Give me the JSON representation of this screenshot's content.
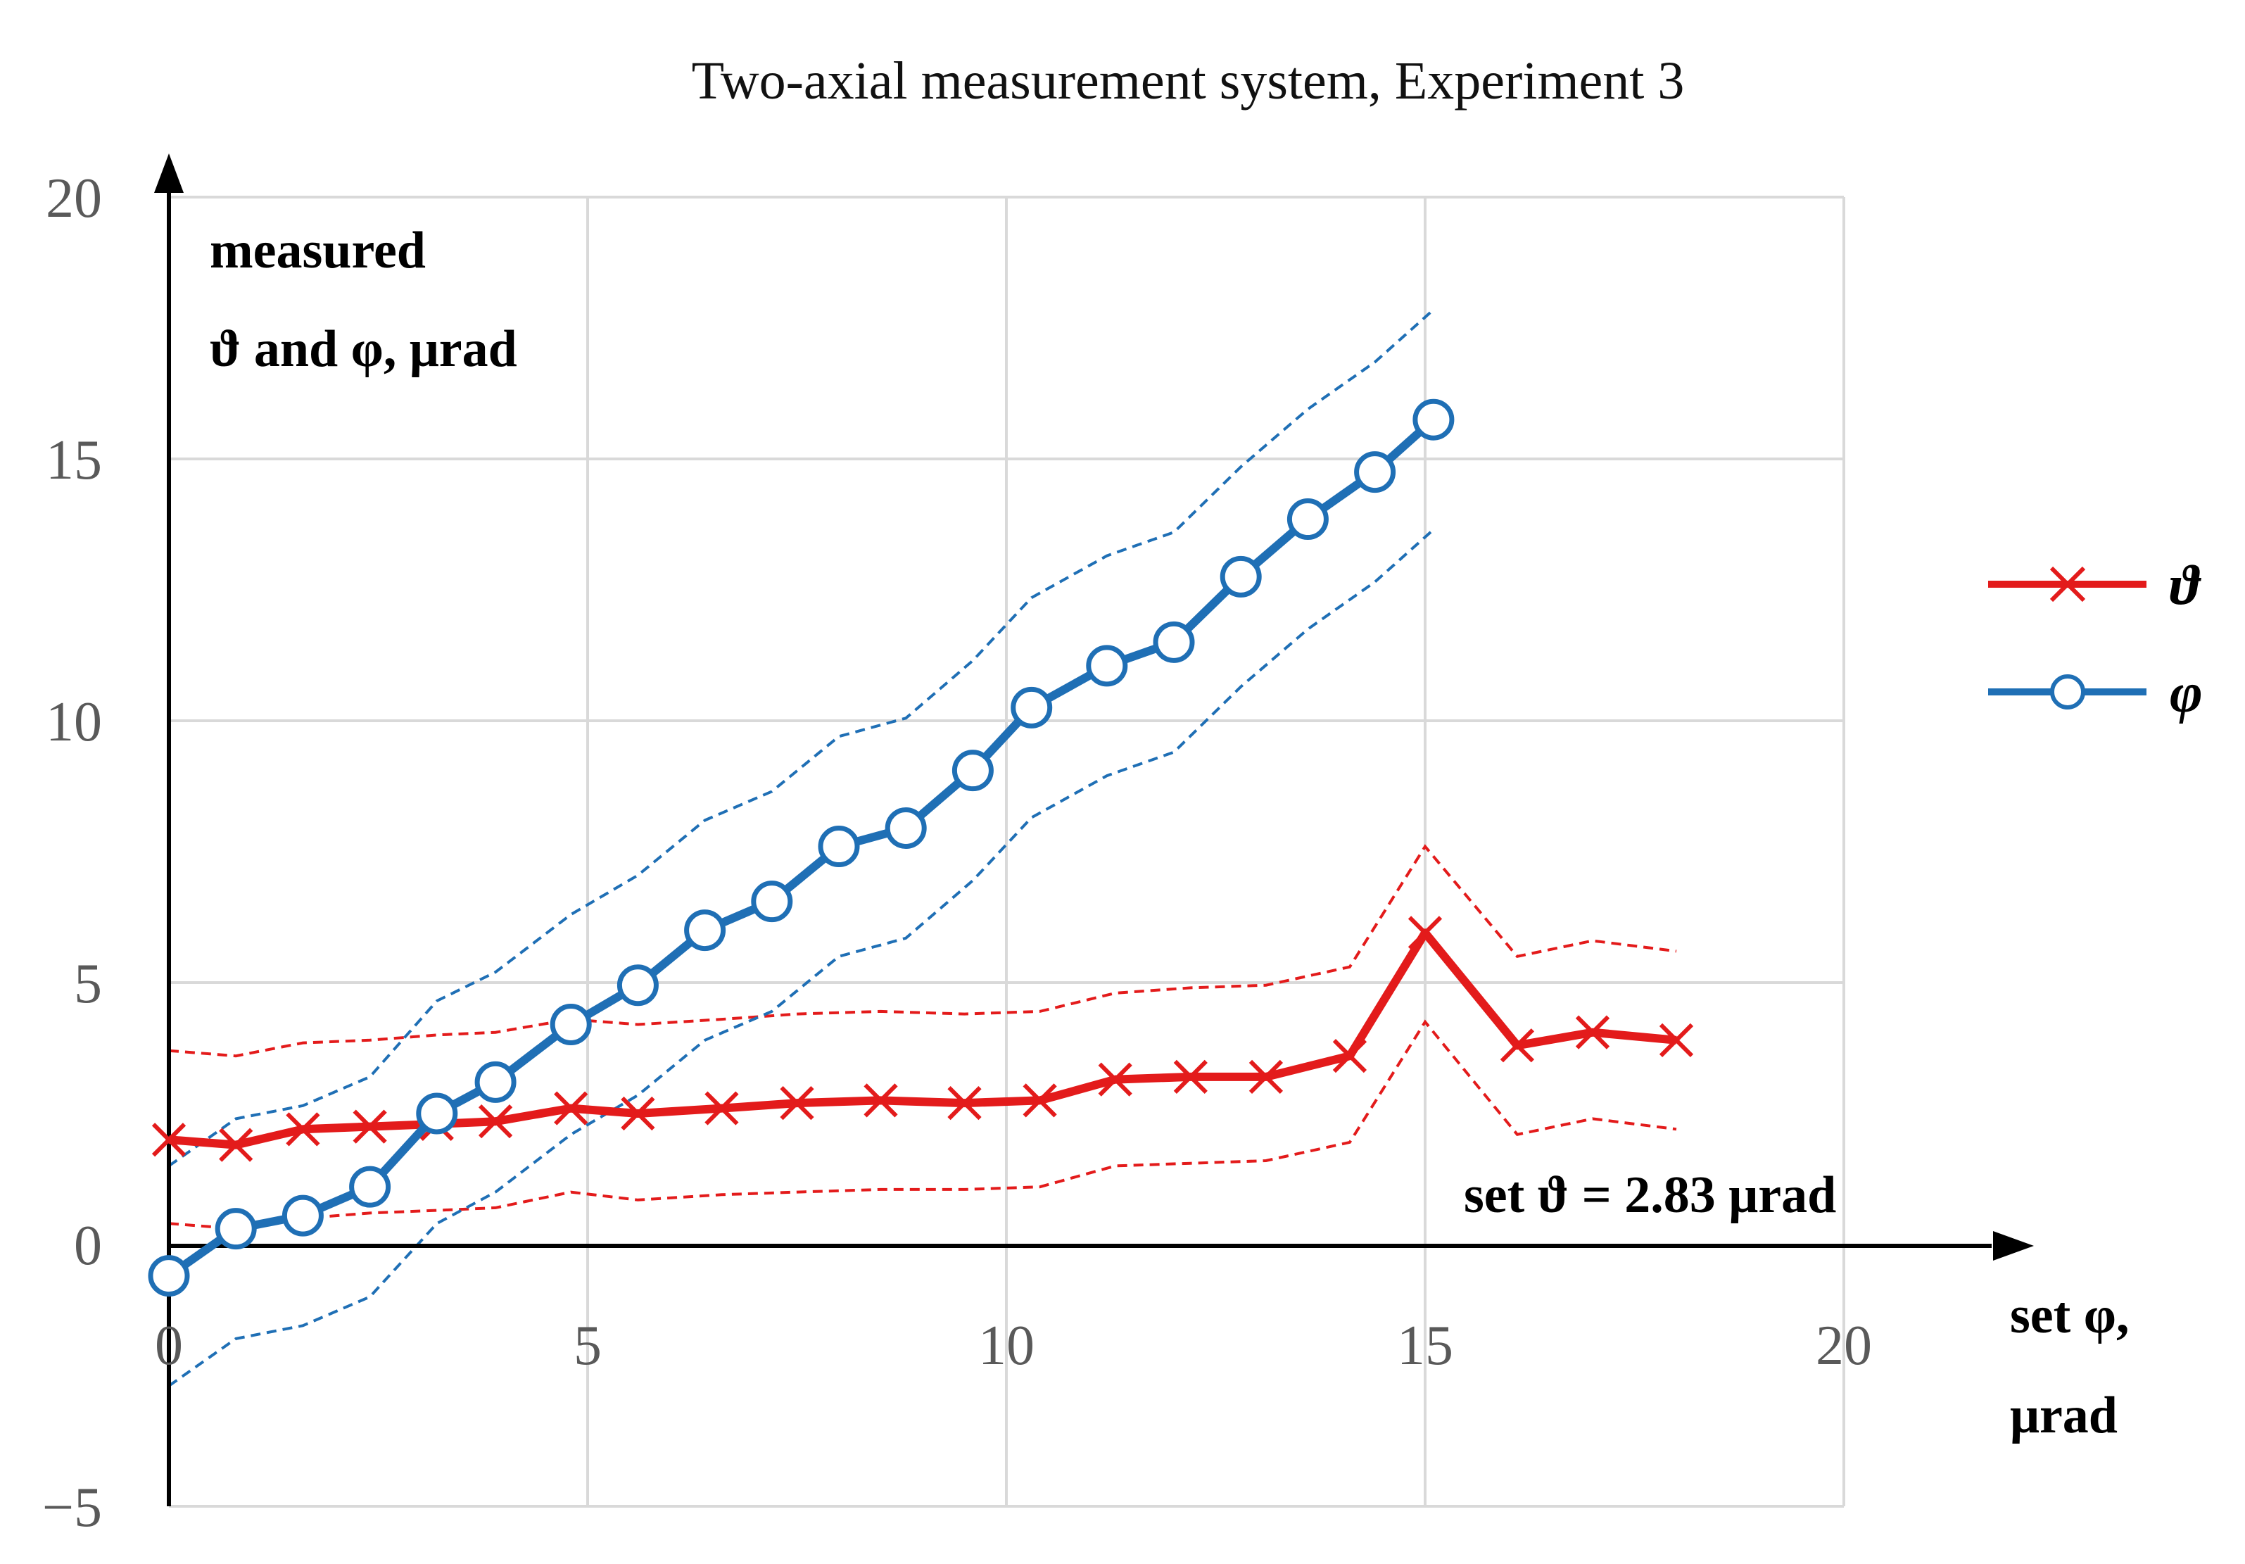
{
  "chart_data": {
    "type": "line",
    "title": "Two-axial measurement system, Experiment 3",
    "ylabel_lines": [
      "measured",
      "ϑ and φ, μrad"
    ],
    "xlabel_lines": [
      "set φ,",
      "μrad"
    ],
    "annotation": "set ϑ = 2.83 μrad",
    "xlim": [
      0,
      20
    ],
    "ylim": [
      -5,
      20
    ],
    "x_ticks": [
      0,
      5,
      10,
      15,
      20
    ],
    "y_ticks": [
      -5,
      0,
      5,
      10,
      15,
      20
    ],
    "x_tick_labels": [
      "0",
      "5",
      "10",
      "15",
      "20"
    ],
    "y_tick_labels": [
      "−5",
      "0",
      "5",
      "10",
      "15",
      "20"
    ],
    "grid": true,
    "legend_position": "right",
    "colors": {
      "theta": "#E31B1B",
      "phi": "#1F6FB5"
    },
    "series": [
      {
        "name": "ϑ",
        "marker": "x",
        "x": [
          0,
          0.8,
          1.6,
          2.4,
          3.2,
          3.9,
          4.8,
          5.6,
          6.6,
          7.5,
          8.5,
          9.5,
          10.4,
          11.3,
          12.2,
          13.1,
          14.1,
          15.0,
          16.1,
          17.0,
          18.0
        ],
        "y": [
          2.0,
          1.9,
          2.2,
          2.25,
          2.3,
          2.35,
          2.6,
          2.5,
          2.6,
          2.7,
          2.75,
          2.7,
          2.75,
          3.15,
          3.2,
          3.2,
          3.6,
          5.95,
          3.8,
          4.05,
          3.9
        ],
        "upper": [
          3.7,
          3.6,
          3.85,
          3.9,
          4.0,
          4.05,
          4.3,
          4.2,
          4.3,
          4.4,
          4.45,
          4.4,
          4.45,
          4.8,
          4.9,
          4.95,
          5.3,
          7.6,
          5.5,
          5.8,
          5.6
        ],
        "lower": [
          0.4,
          0.3,
          0.5,
          0.6,
          0.65,
          0.7,
          1.0,
          0.85,
          0.95,
          1.0,
          1.05,
          1.05,
          1.1,
          1.5,
          1.55,
          1.6,
          1.95,
          4.25,
          2.1,
          2.4,
          2.2
        ]
      },
      {
        "name": "φ",
        "marker": "o",
        "x": [
          0,
          0.8,
          1.6,
          2.4,
          3.2,
          3.9,
          4.8,
          5.6,
          6.4,
          7.2,
          8.0,
          8.8,
          9.6,
          10.3,
          11.2,
          12.0,
          12.8,
          13.6,
          14.4,
          15.1
        ],
        "y": [
          -0.6,
          0.3,
          0.55,
          1.1,
          2.5,
          3.1,
          4.2,
          4.95,
          6.0,
          6.55,
          7.6,
          7.95,
          9.05,
          10.25,
          11.05,
          11.5,
          12.75,
          13.85,
          14.75,
          15.75
        ],
        "upper": [
          1.5,
          2.4,
          2.65,
          3.2,
          4.65,
          5.2,
          6.3,
          7.05,
          8.1,
          8.65,
          9.7,
          10.05,
          11.15,
          12.35,
          13.15,
          13.6,
          14.85,
          15.95,
          16.85,
          17.85
        ],
        "lower": [
          -2.7,
          -1.8,
          -1.55,
          -1.0,
          0.4,
          1.0,
          2.1,
          2.85,
          3.9,
          4.45,
          5.5,
          5.85,
          6.95,
          8.15,
          8.95,
          9.4,
          10.65,
          11.75,
          12.65,
          13.65
        ]
      }
    ]
  }
}
